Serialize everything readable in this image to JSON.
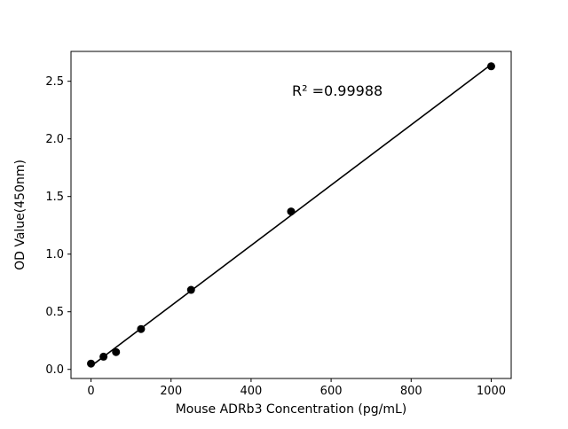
{
  "chart_data": {
    "type": "scatter",
    "x": [
      0,
      31.25,
      62.5,
      125,
      250,
      500,
      1000
    ],
    "y": [
      0.05,
      0.11,
      0.15,
      0.35,
      0.69,
      1.37,
      2.63
    ],
    "fit_line": true,
    "annotation": "R² =0.99988",
    "title": "",
    "xlabel": "Mouse ADRb3 Concentration (pg/mL)",
    "ylabel": "OD Value(450nm)",
    "xlim": [
      -50,
      1050
    ],
    "ylim": [
      -0.079,
      2.759
    ],
    "xticks": [
      0,
      200,
      400,
      600,
      800,
      1000
    ],
    "yticks": [
      0.0,
      0.5,
      1.0,
      1.5,
      2.0,
      2.5
    ],
    "grid": false,
    "legend": "none",
    "marker_color": "#000000",
    "line_color": "#000000",
    "axis_color": "#000000",
    "background": "#ffffff"
  }
}
